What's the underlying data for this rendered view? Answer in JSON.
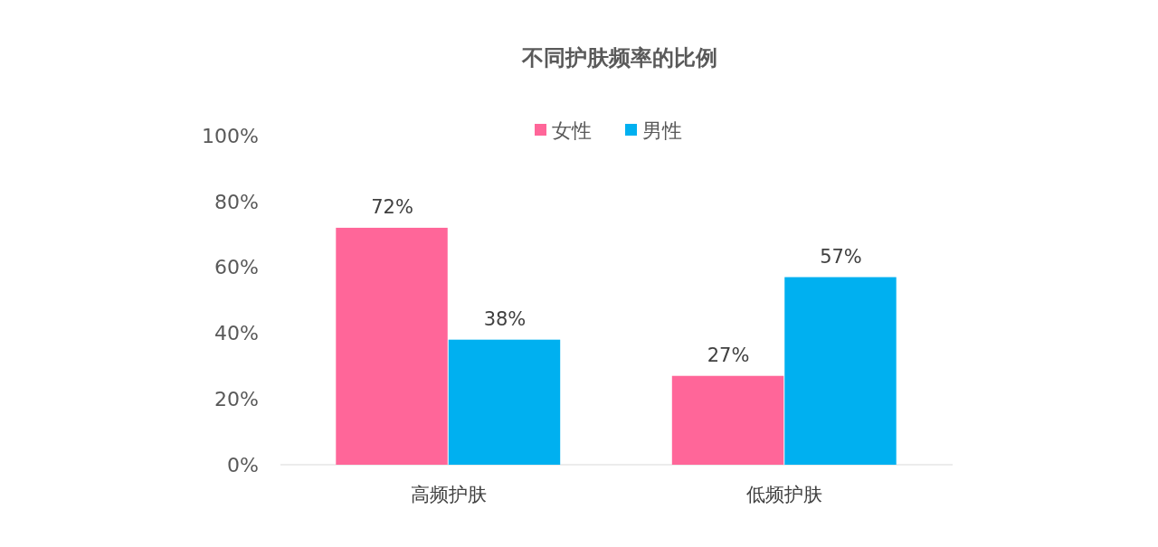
{
  "chart_data": {
    "type": "bar",
    "title": "不同护肤频率的比例",
    "categories": [
      "高频护肤",
      "低频护肤"
    ],
    "series": [
      {
        "name": "女性",
        "color": "#ff6699",
        "values": [
          72,
          27
        ],
        "value_labels": [
          "72%",
          "27%"
        ]
      },
      {
        "name": "男性",
        "color": "#00b0f0",
        "values": [
          38,
          57
        ],
        "value_labels": [
          "38%",
          "57%"
        ]
      }
    ],
    "ylim": [
      0,
      100
    ],
    "yticks": [
      {
        "value": 0,
        "label": "0%"
      },
      {
        "value": 20,
        "label": "20%"
      },
      {
        "value": 40,
        "label": "40%"
      },
      {
        "value": 60,
        "label": "60%"
      },
      {
        "value": 80,
        "label": "80%"
      },
      {
        "value": 100,
        "label": "100%"
      }
    ],
    "legend": "top"
  }
}
